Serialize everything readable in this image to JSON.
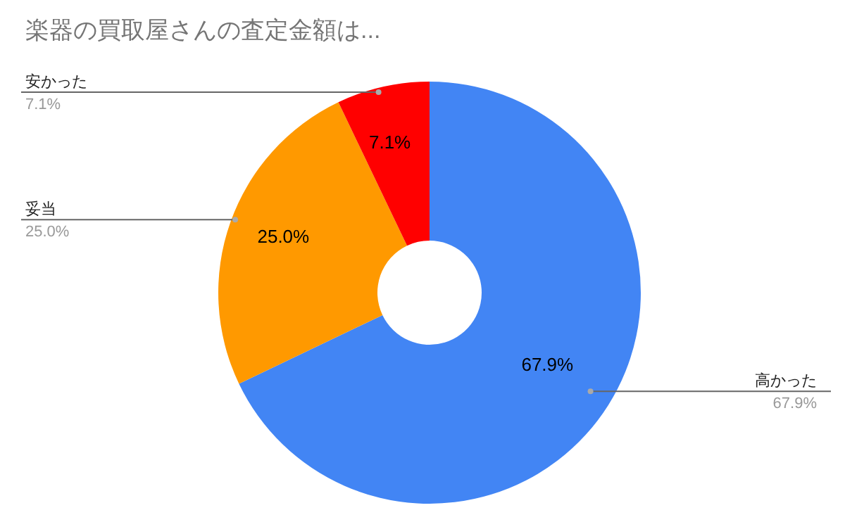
{
  "chart_data": {
    "type": "donut",
    "title": "楽器の買取屋さんの査定金額は...",
    "categories": [
      "高かった",
      "妥当",
      "安かった"
    ],
    "values": [
      67.9,
      25.0,
      7.1
    ],
    "colors": [
      "#4285f4",
      "#ff9900",
      "#ff0000"
    ],
    "value_labels": [
      "67.9%",
      "25.0%",
      "7.1%"
    ],
    "data_labels": true
  }
}
